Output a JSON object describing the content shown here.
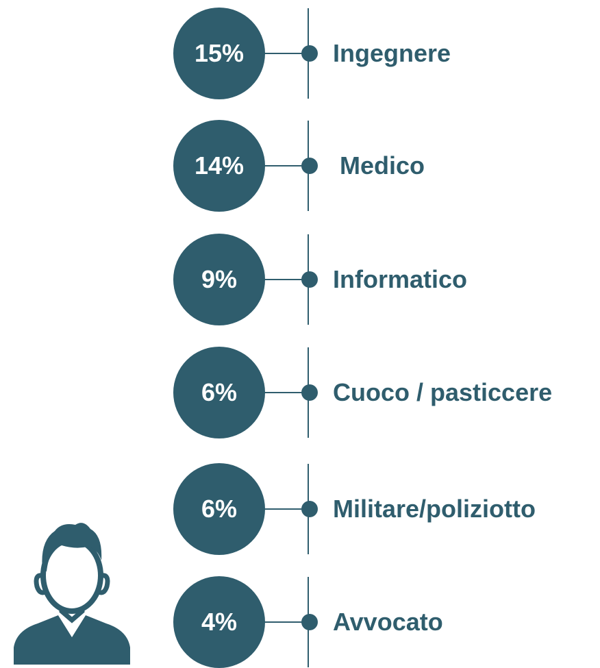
{
  "items": [
    {
      "percent": "15%",
      "label": "Ingegnere"
    },
    {
      "percent": "14%",
      "label": " Medico"
    },
    {
      "percent": "9%",
      "label": "Informatico"
    },
    {
      "percent": "6%",
      "label": "Cuoco / pasticcere"
    },
    {
      "percent": "6%",
      "label": "Militare/poliziotto"
    },
    {
      "percent": "4%",
      "label": "Avvocato"
    }
  ]
}
